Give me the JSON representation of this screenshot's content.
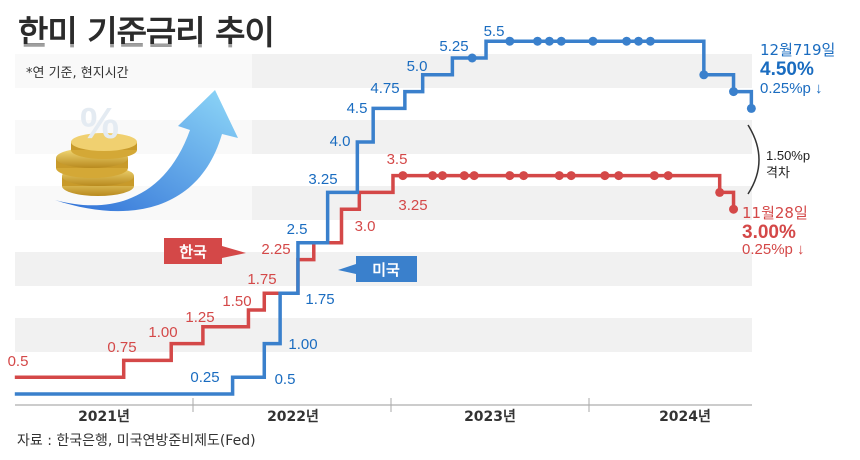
{
  "title": "한미 기준금리 추이",
  "note": "*연 기준, 현지시간",
  "source": "자료 : 한국은행, 미국연방준비제도(Fed)",
  "colors": {
    "korea": "#d44848",
    "us": "#3a80cc",
    "us_text": "#1a6cc0",
    "band": "#f1f1f1"
  },
  "illustration": {
    "icons": [
      "percent-icon",
      "coin-stack-icon",
      "up-arrow-icon"
    ]
  },
  "chart_data": {
    "type": "line",
    "step": true,
    "title": "",
    "xlabel": "",
    "ylabel": "",
    "x_ticks": [
      "2021년",
      "2022년",
      "2023년",
      "2024년"
    ],
    "xlim": [
      2021.1,
      2024.85
    ],
    "ylim": [
      0,
      6
    ],
    "grid": "alternating horizontal bands",
    "series": [
      {
        "name": "한국",
        "color": "#d44848",
        "steps": [
          [
            2021.1,
            0.5
          ],
          [
            2021.65,
            0.75
          ],
          [
            2021.89,
            1.0
          ],
          [
            2022.05,
            1.25
          ],
          [
            2022.28,
            1.5
          ],
          [
            2022.36,
            1.75
          ],
          [
            2022.53,
            2.25
          ],
          [
            2022.61,
            2.5
          ],
          [
            2022.75,
            3.0
          ],
          [
            2022.84,
            3.25
          ],
          [
            2023.01,
            3.5
          ],
          [
            2024.66,
            3.25
          ],
          [
            2024.73,
            3.0
          ]
        ],
        "end": 2024.73,
        "markers": [
          2023.06,
          2023.21,
          2023.26,
          2023.37,
          2023.42,
          2023.6,
          2023.67,
          2023.85,
          2023.91,
          2024.08,
          2024.15,
          2024.33,
          2024.4,
          2024.66,
          2024.73
        ],
        "labels": [
          "0.5",
          "0.75",
          "1.00",
          "1.25",
          "1.50",
          "1.75",
          "2.25",
          "3.0",
          "3.25",
          "3.5"
        ]
      },
      {
        "name": "미국",
        "color": "#3a80cc",
        "steps": [
          [
            2021.1,
            0.25
          ],
          [
            2022.2,
            0.5
          ],
          [
            2022.36,
            1.0
          ],
          [
            2022.44,
            1.75
          ],
          [
            2022.53,
            2.5
          ],
          [
            2022.68,
            3.25
          ],
          [
            2022.83,
            4.0
          ],
          [
            2022.91,
            4.5
          ],
          [
            2023.07,
            4.75
          ],
          [
            2023.16,
            5.0
          ],
          [
            2023.31,
            5.25
          ],
          [
            2023.48,
            5.5
          ],
          [
            2024.58,
            5.0
          ],
          [
            2024.73,
            4.75
          ],
          [
            2024.82,
            4.5
          ]
        ],
        "end": 2024.82,
        "markers": [
          2023.41,
          2023.6,
          2023.74,
          2023.8,
          2023.86,
          2024.02,
          2024.19,
          2024.25,
          2024.31,
          2024.58,
          2024.73,
          2024.82
        ],
        "labels": [
          "0.25",
          "0.5",
          "1.00",
          "1.75",
          "2.5",
          "3.25",
          "4.0",
          "4.5",
          "4.75",
          "5.0",
          "5.25",
          "5.5"
        ]
      }
    ],
    "legend": {
      "korea": "한국",
      "us": "미국"
    },
    "annotations": {
      "us": {
        "date": "12월719일",
        "rate": "4.50%",
        "change": "0.25%p ↓"
      },
      "korea": {
        "date": "11월28일",
        "rate": "3.00%",
        "change": "0.25%p ↓"
      },
      "gap": {
        "value": "1.50%p",
        "label": "격차"
      }
    }
  }
}
